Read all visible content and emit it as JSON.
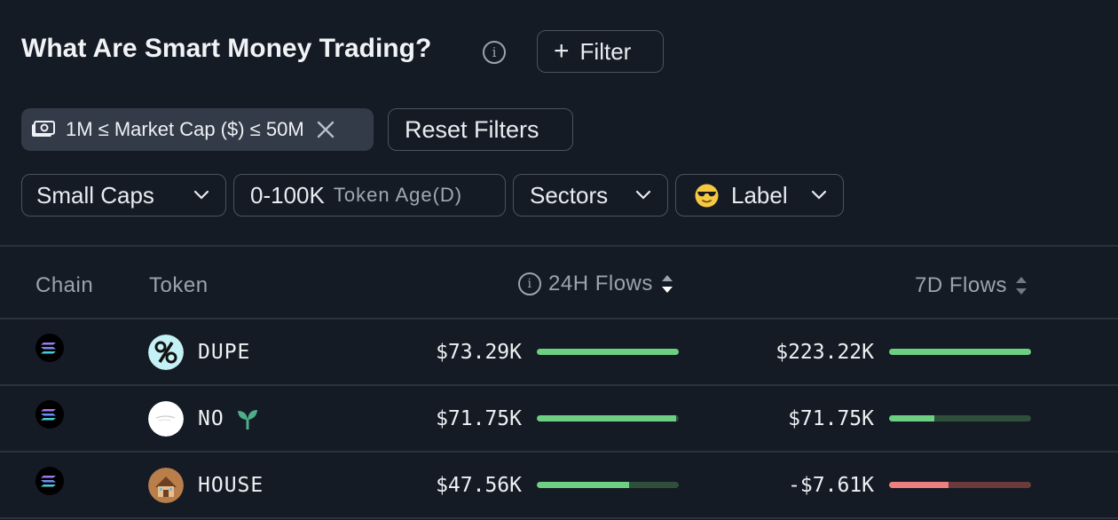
{
  "header": {
    "title": "What Are Smart Money Trading?",
    "info_icon": "info-icon",
    "filter_label": "Filter"
  },
  "active_filters": {
    "market_cap_chip": "1M ≤ Market Cap ($) ≤ 50M",
    "chip_icon": "cash-icon",
    "reset_label": "Reset Filters"
  },
  "dropdowns": {
    "caps": "Small Caps",
    "age_value": "0-100K",
    "age_label": "Token Age(D)",
    "sectors": "Sectors",
    "label": "Label",
    "label_icon": "sunglasses-emoji-icon"
  },
  "table": {
    "columns": [
      "Chain",
      "Token",
      "24H Flows",
      "7D Flows"
    ],
    "rows": [
      {
        "chain": "solana",
        "token": "DUPE",
        "flow_24h": "$73.29K",
        "flow_24h_bar": {
          "fill": 1.0,
          "positive": true
        },
        "flow_7d": "$223.22K",
        "flow_7d_bar": {
          "fill": 1.0,
          "positive": true
        }
      },
      {
        "chain": "solana",
        "token": "NO",
        "badge": "sprout-icon",
        "flow_24h": "$71.75K",
        "flow_24h_bar": {
          "fill": 0.98,
          "positive": true
        },
        "flow_7d": "$71.75K",
        "flow_7d_bar": {
          "fill": 0.32,
          "positive": true
        }
      },
      {
        "chain": "solana",
        "token": "HOUSE",
        "flow_24h": "$47.56K",
        "flow_24h_bar": {
          "fill": 0.65,
          "positive": true
        },
        "flow_7d": "-$7.61K",
        "flow_7d_bar": {
          "fill": 0.42,
          "positive": false
        }
      }
    ]
  },
  "colors": {
    "background": "#151b24",
    "positive": "#6ccf82",
    "positive_track": "#2f4f3a",
    "negative": "#ee7f7f",
    "negative_track": "#6a3a3d"
  }
}
